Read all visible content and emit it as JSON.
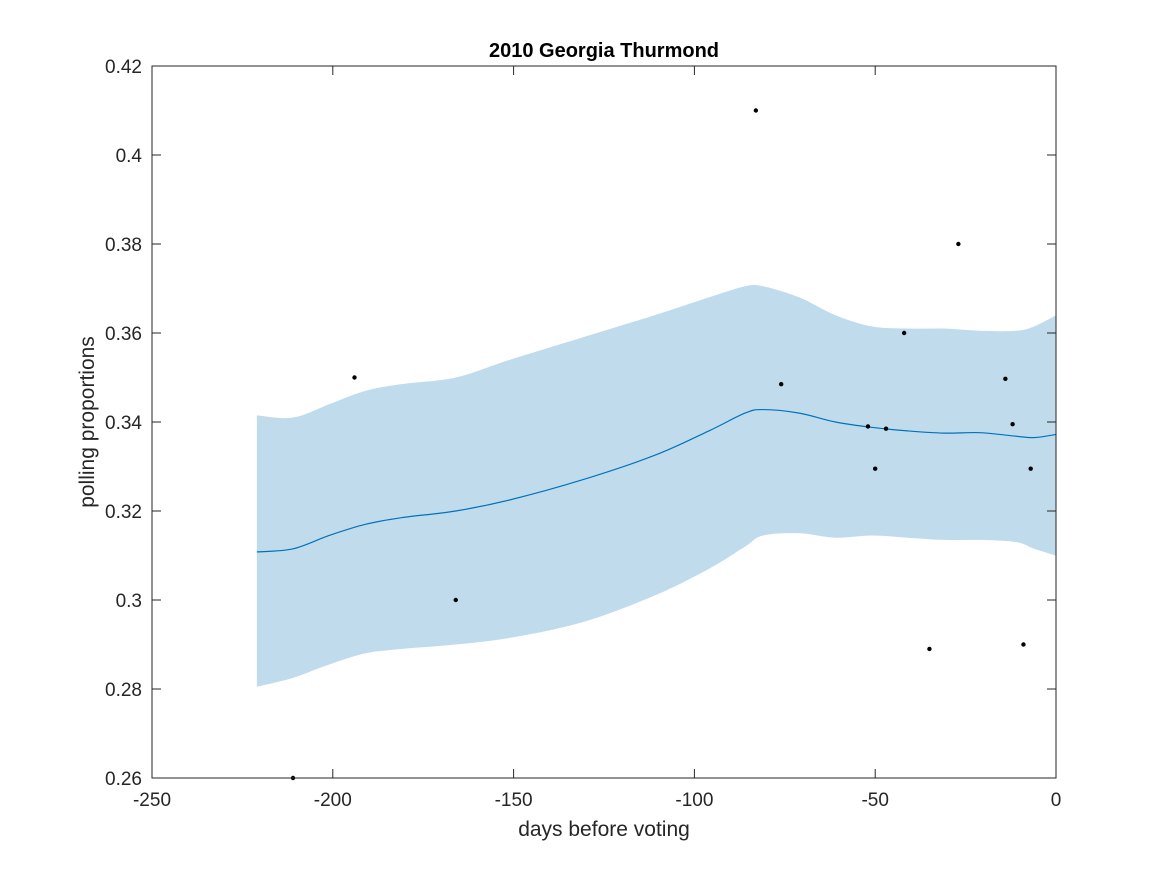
{
  "chart_data": {
    "type": "line",
    "title": "2010 Georgia Thurmond",
    "xlabel": "days before voting",
    "ylabel": "polling proportions",
    "xlim": [
      -250,
      0
    ],
    "ylim": [
      0.26,
      0.42
    ],
    "x_ticks": [
      -250,
      -200,
      -150,
      -100,
      -50,
      0
    ],
    "x_tick_labels": [
      "-250",
      "-200",
      "-150",
      "-100",
      "-50",
      "0"
    ],
    "y_ticks": [
      0.26,
      0.28,
      0.3,
      0.32,
      0.34,
      0.36,
      0.38,
      0.4,
      0.42
    ],
    "y_tick_labels": [
      "0.26",
      "0.28",
      "0.3",
      "0.32",
      "0.34",
      "0.36",
      "0.38",
      "0.4",
      "0.42"
    ],
    "grid": false,
    "colors": {
      "band": "#c0dcec",
      "trend": "#0072bd",
      "points": "#000000",
      "axes": "#262626"
    },
    "band": {
      "x": [
        -221,
        -211,
        -201,
        -191,
        -181,
        -166,
        -151,
        -131,
        -111,
        -96,
        -86,
        -81,
        -71,
        -61,
        -51,
        -41,
        -31,
        -21,
        -11,
        -6,
        0
      ],
      "upper": [
        0.3415,
        0.341,
        0.344,
        0.347,
        0.3485,
        0.35,
        0.354,
        0.359,
        0.364,
        0.368,
        0.3705,
        0.3705,
        0.368,
        0.364,
        0.3615,
        0.361,
        0.361,
        0.3605,
        0.3605,
        0.3615,
        0.364
      ],
      "lower": [
        0.2805,
        0.2825,
        0.2855,
        0.288,
        0.289,
        0.29,
        0.2915,
        0.295,
        0.301,
        0.307,
        0.312,
        0.3145,
        0.315,
        0.314,
        0.3145,
        0.314,
        0.3135,
        0.3135,
        0.313,
        0.3115,
        0.31
      ]
    },
    "series": [
      {
        "type": "line",
        "x": [
          -221,
          -211,
          -201,
          -191,
          -181,
          -166,
          -151,
          -131,
          -111,
          -96,
          -86,
          -81,
          -71,
          -61,
          -51,
          -41,
          -31,
          -21,
          -11,
          -6,
          0
        ],
        "y": [
          0.3108,
          0.3115,
          0.3145,
          0.317,
          0.3185,
          0.32,
          0.3225,
          0.327,
          0.3325,
          0.338,
          0.342,
          0.3428,
          0.342,
          0.34,
          0.3388,
          0.338,
          0.3375,
          0.3376,
          0.3368,
          0.3365,
          0.3372
        ]
      },
      {
        "type": "scatter",
        "x": [
          -211,
          -194,
          -166,
          -83,
          -76,
          -52,
          -50,
          -47,
          -42,
          -35,
          -27,
          -14,
          -12,
          -9,
          -7
        ],
        "y": [
          0.26,
          0.35,
          0.3,
          0.41,
          0.3485,
          0.339,
          0.3295,
          0.3385,
          0.36,
          0.289,
          0.38,
          0.3497,
          0.3395,
          0.29,
          0.3295
        ]
      }
    ]
  }
}
